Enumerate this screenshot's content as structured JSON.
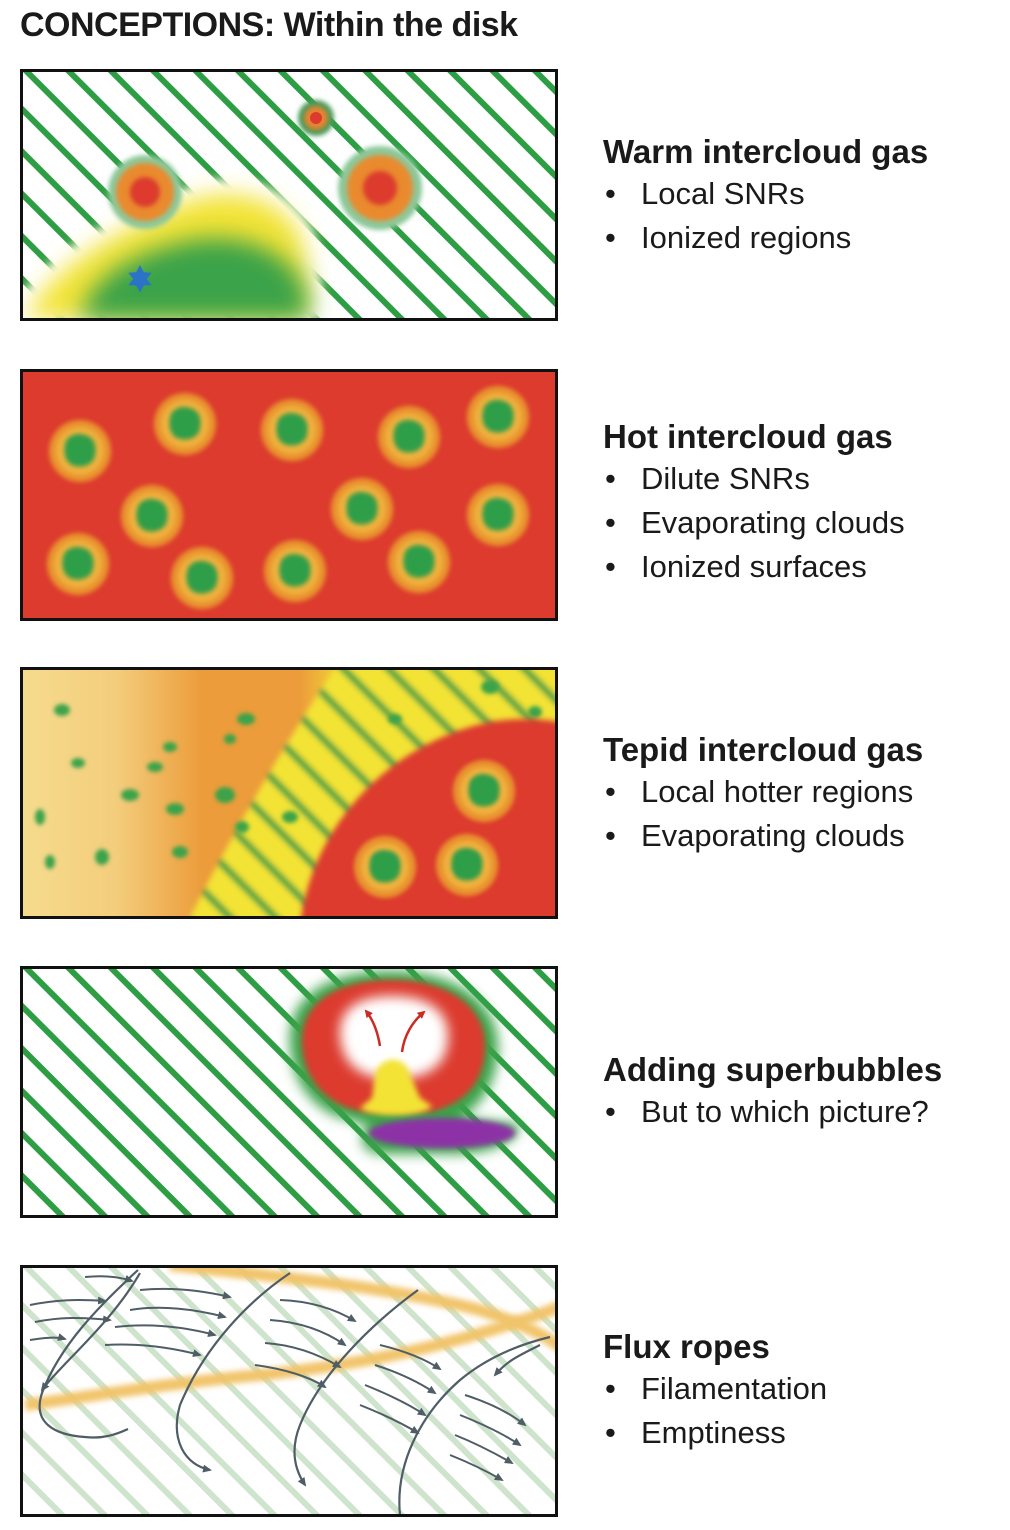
{
  "title": "CONCEPTIONS: Within the disk",
  "panels": [
    {
      "heading": "Warm intercloud gas",
      "bullets": [
        "Local SNRs",
        "Ionized regions"
      ]
    },
    {
      "heading": "Hot intercloud gas",
      "bullets": [
        "Dilute SNRs",
        "Evaporating clouds",
        "Ionized surfaces"
      ]
    },
    {
      "heading": "Tepid intercloud gas",
      "bullets": [
        "Local hotter regions",
        "Evaporating clouds"
      ]
    },
    {
      "heading": "Adding superbubbles",
      "bullets": [
        "But to which picture?"
      ]
    },
    {
      "heading": "Flux ropes",
      "bullets": [
        "Filamentation",
        "Emptiness"
      ]
    }
  ],
  "colors": {
    "hatch_green": "#2e9e44",
    "hot_red": "#dc3b2e",
    "halo_orange": "#e9922e",
    "warm_yellow": "#f3e336",
    "tepid_orange": "#ec9c3a",
    "superbubble_purple": "#8d33a6",
    "flux_arrow_gray": "#4f5d66",
    "flux_band": "#f1c46a"
  }
}
